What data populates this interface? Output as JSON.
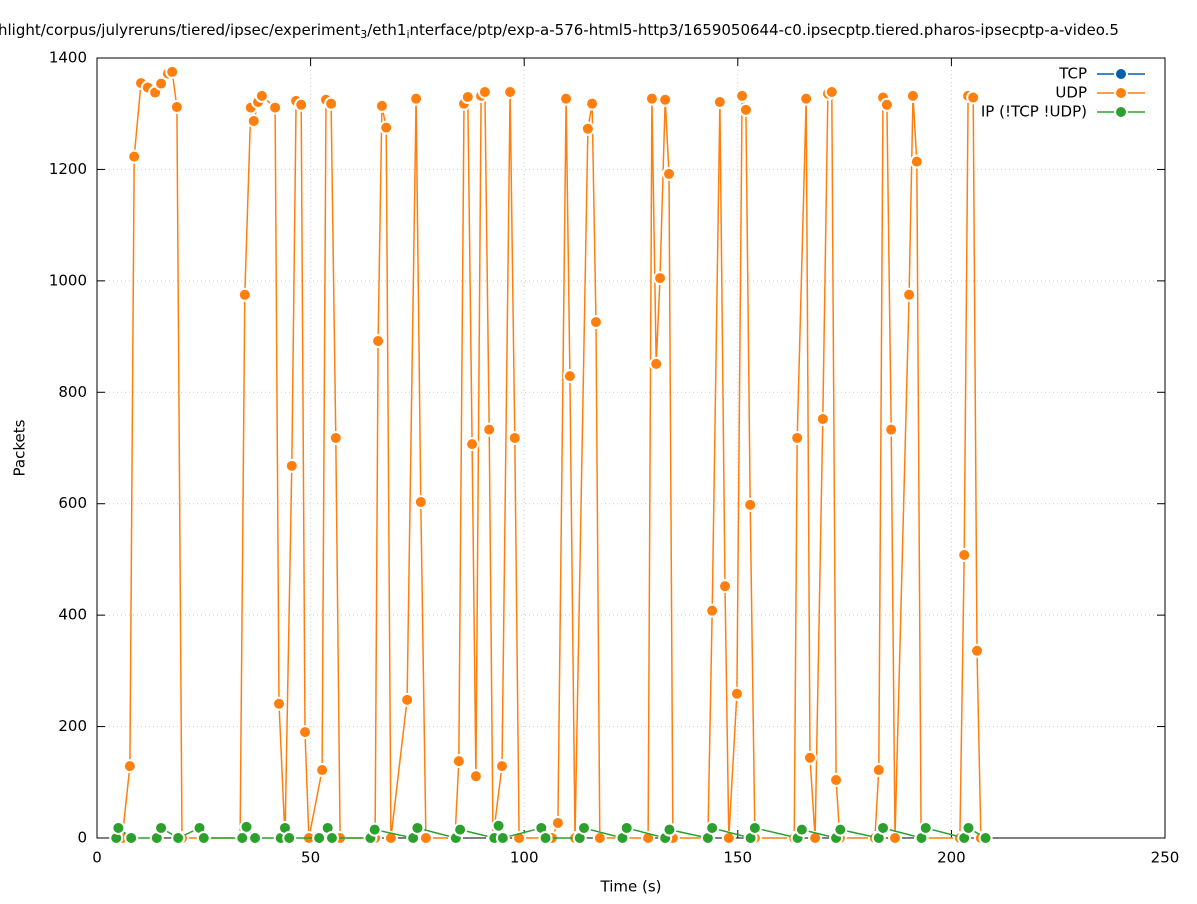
{
  "chart_data": {
    "type": "line",
    "title_parts": [
      "hlight/corpus/julyreruns/tiered/ipsec/experiment",
      "3",
      "/eth1",
      "i",
      "nterface/ptp/exp-a-576-html5-http3/1659050644-c0.ipsecptp.tiered.pharos-ipsecptp-a-video.5"
    ],
    "x_label": "Time (s)",
    "y_label": "Packets",
    "xlim": [
      0,
      250
    ],
    "xticks": [
      0,
      50,
      100,
      150,
      200,
      250
    ],
    "ylim": [
      0,
      1400
    ],
    "yticks": [
      0,
      200,
      400,
      600,
      800,
      1000,
      1200,
      1400
    ],
    "grid": true,
    "legend": "top-right",
    "series": [
      {
        "name": "TCP",
        "color": "#0060ad",
        "x": [],
        "values": []
      },
      {
        "name": "UDP",
        "color": "#ff7f0e",
        "x": [
          5.9,
          7.7,
          8.7,
          10.3,
          11.9,
          13.6,
          15,
          16.6,
          17.6,
          18.7,
          19.9,
          33.5,
          34.6,
          36,
          36.7,
          37.7,
          38.6,
          41.7,
          42.6,
          44,
          45.6,
          46.6,
          47.8,
          48.7,
          49.6,
          52.7,
          53.6,
          54.8,
          55.9,
          56.9,
          65.1,
          65.8,
          66.7,
          67.7,
          68.8,
          72.6,
          74.7,
          75.8,
          77,
          83.8,
          84.7,
          85.9,
          86.8,
          87.8,
          88.7,
          89.9,
          90.8,
          91.8,
          92.7,
          94.8,
          96.7,
          97.8,
          98.8,
          106.5,
          107.9,
          109.8,
          110.7,
          111.9,
          114.9,
          115.9,
          116.8,
          117.7,
          129,
          129.9,
          130.9,
          131.8,
          133,
          133.9,
          134.8,
          143,
          144,
          145.8,
          147,
          147.9,
          149.8,
          151,
          151.9,
          152.9,
          154,
          163.2,
          163.9,
          166,
          166.9,
          168.1,
          169.9,
          171.1,
          172,
          173,
          173.9,
          182.1,
          183,
          184,
          184.9,
          185.9,
          186.8,
          190.1,
          191,
          191.9,
          192.9,
          202,
          203,
          203.9,
          205.1,
          206,
          206.9
        ],
        "values": [
          0,
          129,
          1223,
          1355,
          1347,
          1338,
          1354,
          1372,
          1375,
          1312,
          0,
          0,
          975,
          1311,
          1287,
          1321,
          1332,
          1311,
          241,
          0,
          668,
          1323,
          1316,
          190,
          0,
          122,
          1325,
          1318,
          718,
          0,
          0,
          892,
          1314,
          1275,
          0,
          248,
          1327,
          603,
          0,
          0,
          138,
          1318,
          1330,
          707,
          111,
          1332,
          1339,
          733,
          0,
          129,
          1339,
          718,
          0,
          0,
          27,
          1327,
          829,
          0,
          1273,
          1318,
          926,
          0,
          0,
          1327,
          851,
          1005,
          1325,
          1192,
          0,
          0,
          408,
          1321,
          452,
          0,
          259,
          1332,
          1307,
          598,
          0,
          0,
          718,
          1327,
          144,
          0,
          752,
          1336,
          1339,
          104,
          0,
          0,
          122,
          1329,
          1316,
          733,
          0,
          975,
          1332,
          1214,
          0,
          0,
          508,
          1332,
          1329,
          336,
          0
        ]
      },
      {
        "name": "IP (!TCP  !UDP)",
        "color": "#2ca02c",
        "x": [
          4.5,
          5,
          8,
          14,
          15,
          19,
          24,
          25,
          34,
          35,
          37,
          43,
          44,
          45,
          52,
          54,
          55,
          64,
          65,
          74,
          75,
          84,
          85,
          93,
          94,
          95,
          104,
          105,
          113,
          114,
          123,
          124,
          133,
          134,
          143,
          144,
          153,
          154,
          164,
          165,
          173,
          174,
          183,
          184,
          193,
          194,
          203,
          204,
          208
        ],
        "values": [
          0,
          18,
          0,
          0,
          18,
          0,
          18,
          0,
          0,
          20,
          0,
          0,
          18,
          0,
          0,
          18,
          0,
          0,
          15,
          0,
          18,
          0,
          15,
          0,
          22,
          0,
          18,
          0,
          0,
          18,
          0,
          18,
          0,
          15,
          0,
          18,
          0,
          18,
          0,
          15,
          0,
          15,
          0,
          18,
          0,
          18,
          0,
          18,
          0
        ]
      }
    ]
  }
}
